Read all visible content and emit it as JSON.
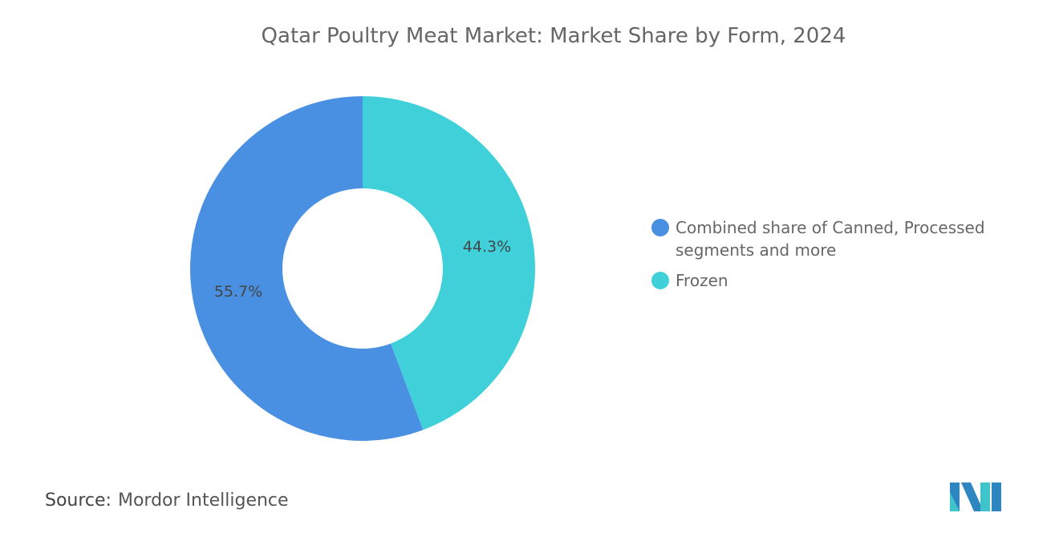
{
  "chart_data": {
    "type": "pie",
    "title": "Qatar Poultry Meat Market: Market Share by Form, 2024",
    "donut": true,
    "slices": [
      {
        "name": "Frozen",
        "value": 44.3,
        "label": "44.3%",
        "color": "#40D0DA"
      },
      {
        "name": "Combined share of Canned, Processed segments and more",
        "value": 55.7,
        "label": "55.7%",
        "color": "#4A90E2"
      }
    ],
    "legend_order": [
      1,
      0
    ],
    "legend_position": "right"
  },
  "source": {
    "label": "Source:",
    "value": "Mordor Intelligence"
  }
}
